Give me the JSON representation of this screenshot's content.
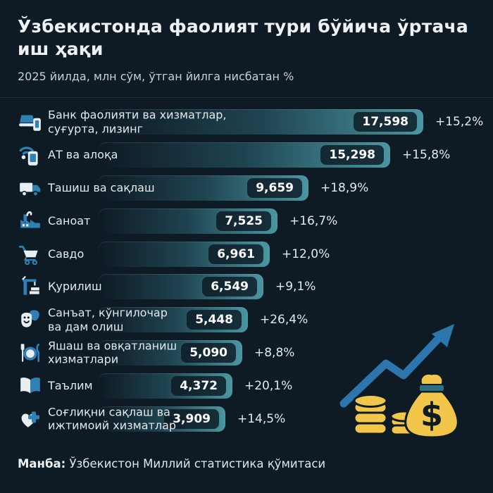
{
  "header": {
    "title": "Ўзбекистонда фаолият тури бўйича ўртача иш ҳақи",
    "title_lines": [
      "Ўзбекистонда фаолият тури бўйича ўртача",
      "иш ҳақи"
    ],
    "subtitle": "2025 йилда, млн сўм, ўтган йилга нисбатан %"
  },
  "chart_data": {
    "type": "bar",
    "orientation": "horizontal",
    "title": "Ўзбекистонда фаолият тури бўйича ўртача иш ҳақи",
    "subtitle": "2025 йилда, млн сўм, ўтган йилга нисбатан %",
    "unit": "млн сўм",
    "year": "2025",
    "xlim": [
      0,
      18000
    ],
    "grid": false,
    "legend": false,
    "categories": [
      "Банк фаолияти ва хизматлар, суғурта, лизинг",
      "АТ ва алоқа",
      "Ташиш ва сақлаш",
      "Саноат",
      "Савдо",
      "Қурилиш",
      "Санъат, кўнгилочар ва дам олиш",
      "Яшаш ва овқатланиш хизматлари",
      "Таълим",
      "Соғлиқни сақлаш ва ижтимоий хизматлар"
    ],
    "label_lines": [
      [
        "Банк фаолияти ва хизматлар,",
        "суғурта, лизинг"
      ],
      [
        "АТ ва алоқа"
      ],
      [
        "Ташиш ва сақлаш"
      ],
      [
        "Саноат"
      ],
      [
        "Савдо"
      ],
      [
        "Қурилиш"
      ],
      [
        "Санъат, кўнгилочар",
        "ва дам олиш"
      ],
      [
        "Яшаш ва овқатланиш",
        "хизматлари"
      ],
      [
        "Таълим"
      ],
      [
        "Соғлиқни сақлаш ва",
        "ижтимоий хизматлар"
      ]
    ],
    "values": [
      17598,
      15298,
      9659,
      7525,
      6961,
      6549,
      5448,
      5090,
      4372,
      3909
    ],
    "value_labels": [
      "17,598",
      "15,298",
      "9,659",
      "7,525",
      "6,961",
      "6,549",
      "5,448",
      "5,090",
      "4,372",
      "3,909"
    ],
    "change_labels": [
      "+15,2%",
      "+15,8%",
      "+18,9%",
      "+16,7%",
      "+12,0%",
      "+9,1%",
      "+26,4%",
      "+8,8%",
      "+20,1%",
      "+14,5%"
    ],
    "icons": [
      "bank-services-icon",
      "it-communication-icon",
      "transport-storage-icon",
      "industry-icon",
      "trade-icon",
      "construction-icon",
      "arts-entertainment-icon",
      "accommodation-food-icon",
      "education-icon",
      "healthcare-icon"
    ]
  },
  "footer": {
    "source_label": "Манба:",
    "source_text": " Ўзбекистон Миллий статистика қўмитаси"
  },
  "decoration": {
    "money_bag_symbol": "$"
  },
  "colors": {
    "background": "#0e1a24",
    "bar_teal": "#4a96a2",
    "value_pill_dark": "#0b1721",
    "icon_blue": "#2f81b5",
    "icon_white": "#e9eef2",
    "accent_yellow": "#f1c64a",
    "arrow_blue": "#2d76ad",
    "divider": "#22303c"
  }
}
